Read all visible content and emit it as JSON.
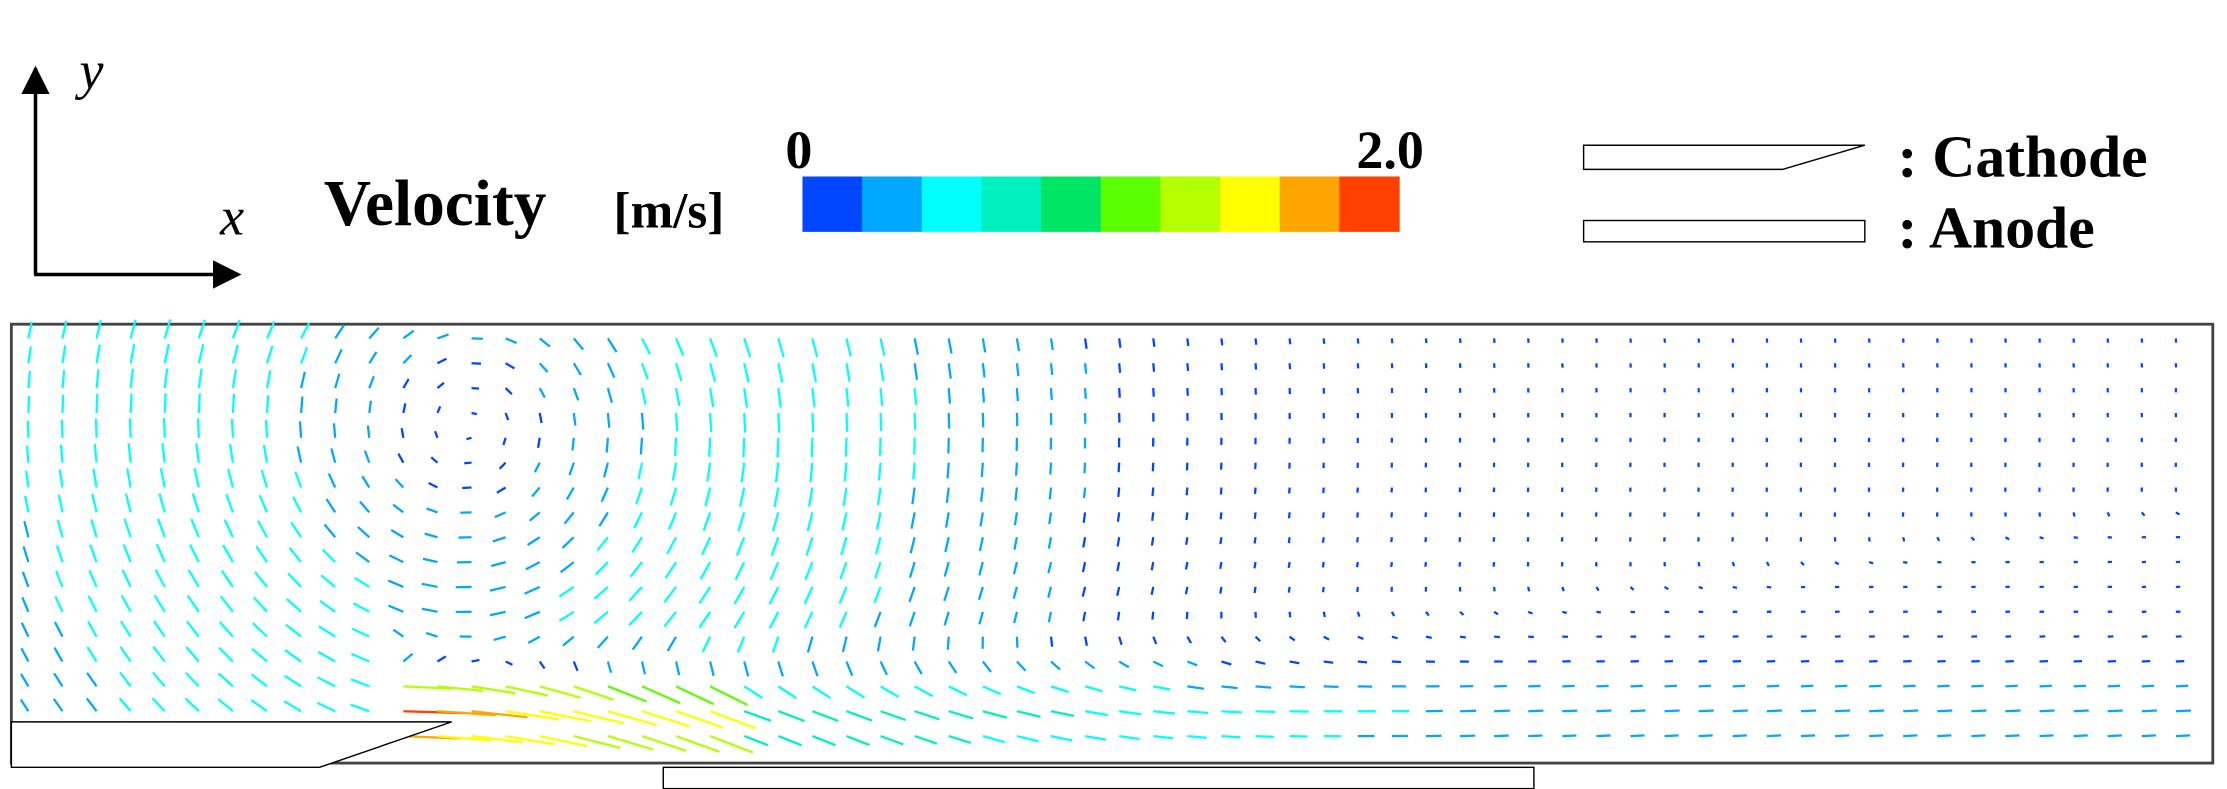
{
  "axes": {
    "y_label": "y",
    "x_label": "x"
  },
  "colorbar": {
    "title": "Velocity",
    "unit": "[m/s]",
    "min_label": "0",
    "max_label": "2.0",
    "colors": [
      "#0047ff",
      "#00a8ff",
      "#00ffff",
      "#00f0c0",
      "#00e664",
      "#5cff00",
      "#b4ff00",
      "#ffff00",
      "#ffa500",
      "#ff4000"
    ]
  },
  "legend": {
    "cathode": ": Cathode",
    "anode": ": Anode"
  }
}
